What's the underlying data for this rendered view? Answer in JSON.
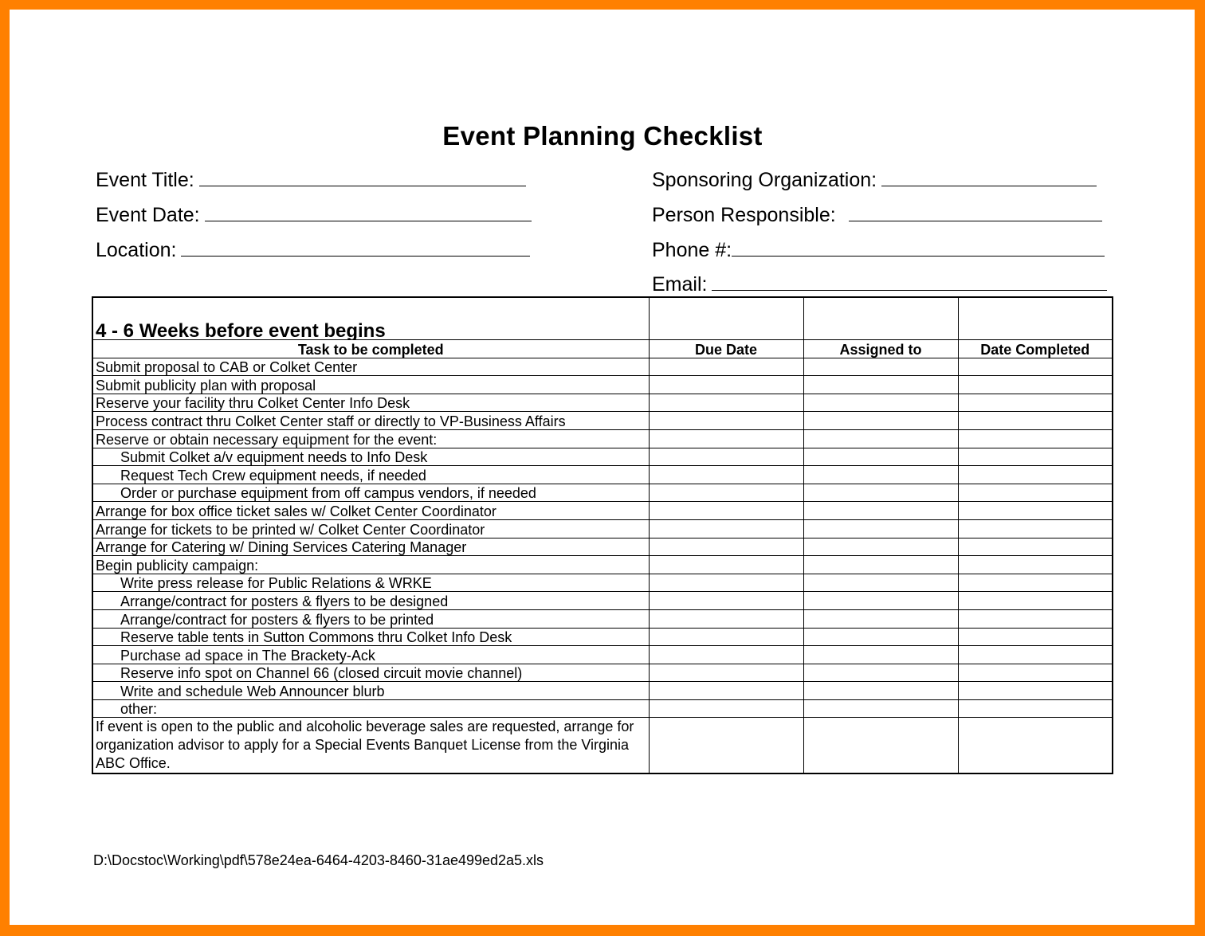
{
  "title": "Event Planning Checklist",
  "fields_left": [
    {
      "label": "Event Title:"
    },
    {
      "label": "Event Date:"
    },
    {
      "label": "Location:"
    }
  ],
  "fields_right": [
    {
      "label": "Sponsoring Organization:"
    },
    {
      "label": "Person Responsible:"
    },
    {
      "label": "Phone #:"
    },
    {
      "label": "Email:"
    }
  ],
  "section_title": "4 - 6 Weeks before event begins",
  "columns": [
    "Task to be completed",
    "Due Date",
    "Assigned to",
    "Date Completed"
  ],
  "tasks": [
    {
      "text": "Submit proposal to CAB or Colket Center",
      "indent": false
    },
    {
      "text": "Submit publicity plan with proposal",
      "indent": false
    },
    {
      "text": "Reserve your facility thru Colket Center Info Desk",
      "indent": false
    },
    {
      "text": "Process contract thru Colket Center staff or directly to VP-Business Affairs",
      "indent": false
    },
    {
      "text": "Reserve or obtain necessary equipment for the event:",
      "indent": false
    },
    {
      "text": "Submit Colket a/v equipment needs to Info Desk",
      "indent": true
    },
    {
      "text": "Request Tech Crew equipment needs, if needed",
      "indent": true
    },
    {
      "text": "Order or purchase equipment from off campus vendors, if needed",
      "indent": true
    },
    {
      "text": "Arrange for box office ticket sales w/ Colket Center Coordinator",
      "indent": false
    },
    {
      "text": "Arrange for tickets to be printed w/ Colket Center Coordinator",
      "indent": false
    },
    {
      "text": "Arrange for Catering w/ Dining Services Catering Manager",
      "indent": false
    },
    {
      "text": "Begin publicity campaign:",
      "indent": false
    },
    {
      "text": "Write press release for Public Relations & WRKE",
      "indent": true
    },
    {
      "text": "Arrange/contract for posters & flyers to be designed",
      "indent": true
    },
    {
      "text": "Arrange/contract for posters & flyers to be printed",
      "indent": true
    },
    {
      "text": "Reserve table tents in Sutton Commons thru Colket Info Desk",
      "indent": true
    },
    {
      "text": "Purchase ad space in The Brackety-Ack",
      "indent": true
    },
    {
      "text": "Reserve info spot on Channel 66 (closed circuit movie channel)",
      "indent": true
    },
    {
      "text": "Write and schedule Web Announcer blurb",
      "indent": true
    },
    {
      "text": "other:",
      "indent": true
    },
    {
      "text": "If event is open to the public and alcoholic beverage sales are requested, arrange for organization advisor to apply for a Special Events Banquet License from the Virginia ABC Office.",
      "indent": false,
      "multiline": true
    }
  ],
  "footer": "D:\\Docstoc\\Working\\pdf\\578e24ea-6464-4203-8460-31ae499ed2a5.xls",
  "colors": {
    "frame": "#ff8000"
  }
}
